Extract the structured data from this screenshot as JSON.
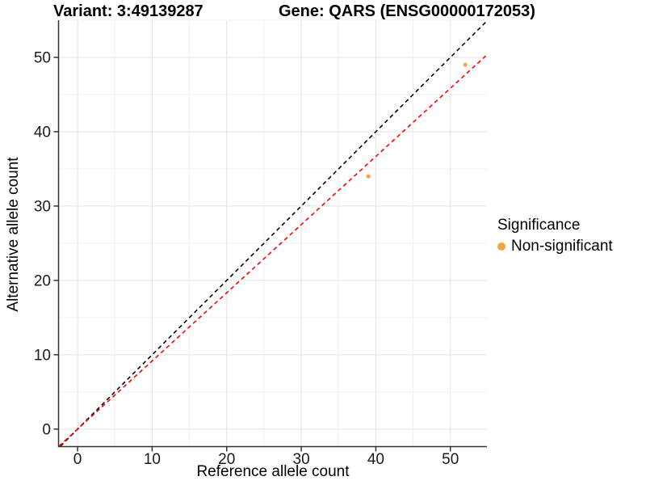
{
  "chart_data": {
    "type": "scatter",
    "title_left": "Variant: 3:49139287",
    "title_right": "Gene: QARS (ENSG00000172053)",
    "xlabel": "Reference allele count",
    "ylabel": "Alternative allele count",
    "legend_title": "Significance",
    "x_ticks": [
      0,
      10,
      20,
      30,
      40,
      50
    ],
    "y_ticks": [
      0,
      10,
      20,
      30,
      40,
      50
    ],
    "x_range": [
      -2.5,
      54.9
    ],
    "y_range": [
      -2.3,
      55.0
    ],
    "minor_step": 5,
    "series": [
      {
        "name": "Non-significant",
        "color": "#F9A242",
        "points": [
          [
            39,
            34
          ],
          [
            52,
            49
          ]
        ]
      }
    ],
    "ref_lines": [
      {
        "name": "identity-line",
        "slope": 1,
        "intercept": 0,
        "color": "#000000",
        "dash": "5 4"
      },
      {
        "name": "fit-line",
        "slope": 0.917,
        "intercept": 0,
        "color": "#FF0000",
        "dash": "5 4"
      }
    ],
    "grid": {
      "major_color": "#E3E3E3",
      "minor_color": "#F1F1F1"
    },
    "axis_color": "#333333",
    "tick_label_color": "#1a1a1a",
    "point_radius": 2.6
  }
}
